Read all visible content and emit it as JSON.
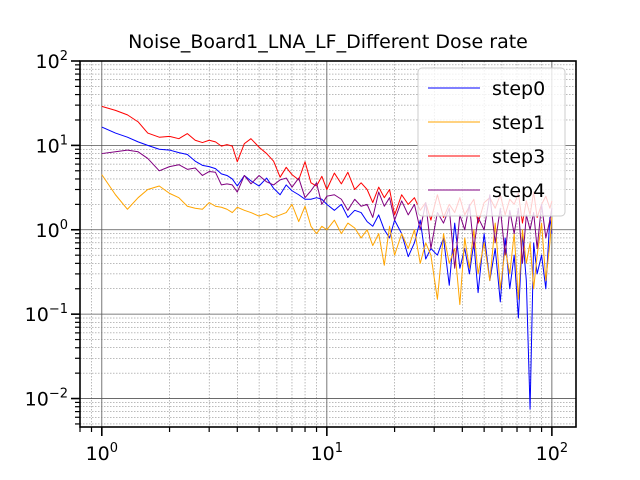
{
  "chart_data": {
    "type": "line",
    "title": "Noise_Board1_LNA_LF_Different Dose rate",
    "xlabel": "",
    "ylabel": "",
    "x_scale": "log",
    "y_scale": "log",
    "xlim": [
      0.8,
      128
    ],
    "ylim": [
      0.0046,
      100
    ],
    "x_ticks": [
      {
        "base": "10",
        "exp": "0",
        "value": 1
      },
      {
        "base": "10",
        "exp": "1",
        "value": 10
      },
      {
        "base": "10",
        "exp": "2",
        "value": 100
      }
    ],
    "y_ticks": [
      {
        "base": "10",
        "exp": "2",
        "value": 100
      },
      {
        "base": "10",
        "exp": "1",
        "value": 10
      },
      {
        "base": "10",
        "exp": "0",
        "value": 1
      },
      {
        "base": "10",
        "exp": "−1",
        "value": 0.1
      },
      {
        "base": "10",
        "exp": "−2",
        "value": 0.01
      }
    ],
    "grid": true,
    "legend_position": "top-right",
    "x": [
      1.0,
      1.15,
      1.3,
      1.45,
      1.6,
      1.8,
      2.0,
      2.2,
      2.4,
      2.6,
      2.8,
      3.0,
      3.2,
      3.4,
      3.6,
      3.8,
      4.0,
      4.3,
      4.6,
      5.0,
      5.4,
      5.8,
      6.2,
      6.6,
      7.0,
      7.5,
      8.0,
      8.5,
      9.0,
      9.5,
      10.0,
      10.8,
      11.6,
      12.4,
      13.3,
      14.2,
      15.1,
      16.0,
      17.0,
      18.0,
      19.0,
      20.0,
      21.5,
      23.0,
      24.5,
      26.0,
      27.5,
      29.0,
      31.0,
      33.0,
      35.0,
      37.0,
      39.0,
      41.0,
      43.0,
      45.0,
      47.0,
      50.0,
      53.0,
      56.0,
      59.0,
      62.0,
      65.0,
      68.0,
      71.0,
      74.0,
      77.0,
      80.0,
      83.0,
      86.0,
      90.0,
      94.0,
      98.0,
      100.0
    ],
    "series": [
      {
        "name": "step0",
        "color": "#0000ff",
        "values": [
          16.5,
          14.0,
          12.5,
          11.0,
          10.0,
          9.0,
          8.8,
          8.2,
          7.8,
          6.5,
          5.8,
          5.6,
          5.3,
          4.6,
          4.4,
          4.0,
          3.3,
          4.4,
          3.8,
          3.3,
          4.1,
          3.1,
          2.6,
          3.4,
          2.9,
          2.6,
          2.3,
          2.3,
          2.4,
          2.3,
          2.0,
          1.7,
          2.0,
          1.4,
          1.7,
          1.6,
          1.25,
          1.1,
          1.5,
          1.0,
          0.8,
          1.3,
          0.9,
          0.48,
          0.7,
          1.3,
          0.45,
          0.6,
          0.5,
          0.8,
          0.22,
          1.2,
          0.35,
          0.6,
          0.3,
          0.7,
          0.18,
          0.9,
          0.25,
          0.6,
          0.14,
          0.8,
          0.2,
          0.5,
          0.09,
          0.9,
          0.25,
          0.0075,
          0.7,
          0.3,
          0.5,
          0.2,
          1.4,
          0.9
        ]
      },
      {
        "name": "step1",
        "color": "#ffa500",
        "values": [
          4.5,
          2.6,
          1.75,
          2.4,
          3.0,
          3.3,
          2.7,
          2.4,
          1.9,
          1.8,
          1.75,
          2.1,
          1.9,
          1.85,
          1.75,
          1.6,
          1.85,
          1.7,
          1.6,
          1.45,
          1.55,
          1.4,
          1.5,
          1.6,
          2.0,
          1.25,
          1.9,
          1.1,
          0.9,
          1.1,
          1.0,
          1.3,
          0.9,
          1.2,
          1.05,
          0.8,
          1.0,
          0.65,
          0.9,
          0.38,
          1.1,
          0.5,
          0.9,
          0.6,
          1.0,
          0.4,
          0.7,
          0.5,
          0.15,
          0.9,
          0.4,
          0.6,
          0.13,
          0.8,
          0.35,
          1.0,
          0.3,
          0.7,
          0.25,
          1.2,
          0.2,
          0.6,
          0.3,
          0.9,
          0.15,
          1.0,
          0.4,
          0.7,
          0.2,
          0.5,
          1.2,
          0.25,
          0.7,
          1.4
        ]
      },
      {
        "name": "step3",
        "color": "#ff0000",
        "values": [
          29.0,
          26.0,
          23.0,
          19.0,
          14.0,
          12.5,
          12.8,
          12.0,
          13.8,
          11.5,
          10.8,
          11.5,
          11.0,
          9.8,
          10.2,
          9.8,
          6.4,
          10.5,
          12.0,
          9.5,
          8.0,
          6.5,
          4.2,
          5.5,
          4.5,
          3.9,
          6.4,
          3.6,
          3.3,
          4.3,
          3.0,
          4.7,
          3.5,
          4.8,
          3.0,
          3.6,
          3.0,
          2.1,
          3.2,
          2.4,
          3.0,
          1.5,
          2.6,
          2.0,
          2.4,
          1.7,
          2.1,
          1.3,
          2.6,
          1.4,
          2.0,
          1.6,
          2.4,
          1.5,
          1.9,
          2.3,
          1.2,
          2.1,
          2.4,
          1.8,
          2.6,
          1.5,
          2.3,
          2.0,
          2.7,
          1.2,
          2.2,
          1.5,
          2.8,
          1.4,
          2.0,
          2.5,
          1.8,
          2.2
        ]
      },
      {
        "name": "step4",
        "color": "#800080",
        "values": [
          8.0,
          8.4,
          8.8,
          8.4,
          7.0,
          5.0,
          5.6,
          5.9,
          5.2,
          5.4,
          4.4,
          4.9,
          4.8,
          3.4,
          3.5,
          3.4,
          2.8,
          4.4,
          3.5,
          4.4,
          3.7,
          3.4,
          3.9,
          4.1,
          3.2,
          4.1,
          2.4,
          2.9,
          3.6,
          2.0,
          2.5,
          2.6,
          2.3,
          1.7,
          2.3,
          1.9,
          2.0,
          1.4,
          2.8,
          1.9,
          2.4,
          1.3,
          2.2,
          1.5,
          2.0,
          1.0,
          2.1,
          0.6,
          1.6,
          1.2,
          1.8,
          0.35,
          1.5,
          1.0,
          2.0,
          0.6,
          1.4,
          1.0,
          2.6,
          0.7,
          1.8,
          0.5,
          1.7,
          0.9,
          1.8,
          0.4,
          1.5,
          1.0,
          1.6,
          0.6,
          2.0,
          0.8,
          1.3,
          1.8
        ]
      }
    ]
  }
}
